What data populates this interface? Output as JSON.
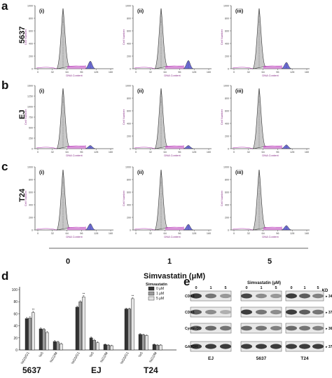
{
  "panel_letters": [
    "a",
    "b",
    "c",
    "d",
    "e"
  ],
  "histograms": {
    "rows": [
      {
        "letter": "a",
        "cell_line": "5637",
        "ymax": [
          1000,
          1000,
          1000
        ]
      },
      {
        "letter": "b",
        "cell_line": "EJ",
        "ymax": [
          1500,
          1000,
          1000
        ]
      },
      {
        "letter": "c",
        "cell_line": "T24",
        "ymax": [
          1000,
          1000,
          1000
        ]
      }
    ],
    "sub_labels": [
      "(i)",
      "(ii)",
      "(iii)"
    ],
    "x_ticks": [
      "0",
      "32",
      "64",
      "96",
      "128",
      "160"
    ],
    "x_axis_label": "DNA Content",
    "y_axis_label": "Cell Number",
    "doses": [
      "0",
      "1",
      "5"
    ],
    "dose_axis_title": "Simvastatin (μM)"
  },
  "chart_data": {
    "type": "bar",
    "groups": [
      {
        "name": "5637",
        "categories": [
          "%G0/G1",
          "%S",
          "%G2/M"
        ]
      },
      {
        "name": "EJ",
        "categories": [
          "%G0/G1",
          "%S",
          "%G2/M"
        ]
      },
      {
        "name": "T24",
        "categories": [
          "%G0/G1",
          "%S",
          "%G2/M"
        ]
      }
    ],
    "series": [
      {
        "name": "0 μM",
        "color": "#333333",
        "values": [
          52,
          35,
          14,
          71,
          20,
          9,
          68,
          26,
          9
        ],
        "errors": [
          2,
          1.5,
          1.5,
          1.5,
          1.5,
          1,
          1.5,
          1,
          1
        ]
      },
      {
        "name": "1 μM",
        "color": "#aaaaaa",
        "values": [
          53,
          34,
          13,
          80,
          16,
          8,
          68,
          25,
          8
        ],
        "errors": [
          2,
          1.5,
          1.5,
          1.5,
          1.5,
          1,
          1.5,
          1,
          1
        ]
      },
      {
        "name": "5 μM",
        "color": "#dddddd",
        "values": [
          62,
          29,
          10,
          88,
          12,
          7,
          85,
          24,
          8
        ],
        "errors": [
          2,
          1.5,
          1.5,
          2,
          1.5,
          1,
          1.5,
          1,
          1
        ]
      }
    ],
    "significance": [
      "**",
      "**",
      "**"
    ],
    "legend_title": "Simvastatin",
    "y_ticks": [
      0,
      20,
      40,
      60,
      80,
      100
    ],
    "ylim": [
      0,
      100
    ],
    "legend_placement": "top-right"
  },
  "western_blot": {
    "title": "Simvastatin (μM)",
    "lane_labels": [
      "0",
      "1",
      "5"
    ],
    "cell_lines": [
      "EJ",
      "5637",
      "T24"
    ],
    "proteins": [
      {
        "name": "CDK4",
        "kd": "34"
      },
      {
        "name": "CDK6",
        "kd": "37"
      },
      {
        "name": "Cyclin D1",
        "kd": "36"
      },
      {
        "name": "GAPDH",
        "kd": "37"
      }
    ],
    "kd_header": "KD",
    "band_intensity": [
      [
        [
          0.85,
          0.6,
          0.45
        ],
        [
          0.8,
          0.5,
          0.45
        ],
        [
          0.85,
          0.7,
          0.55
        ]
      ],
      [
        [
          0.7,
          0.5,
          0.35
        ],
        [
          0.85,
          0.6,
          0.5
        ],
        [
          0.85,
          0.7,
          0.6
        ]
      ],
      [
        [
          0.7,
          0.65,
          0.6
        ],
        [
          0.65,
          0.6,
          0.55
        ],
        [
          0.65,
          0.6,
          0.55
        ]
      ],
      [
        [
          0.85,
          0.85,
          0.85
        ],
        [
          0.85,
          0.85,
          0.85
        ],
        [
          0.85,
          0.85,
          0.85
        ]
      ]
    ]
  }
}
